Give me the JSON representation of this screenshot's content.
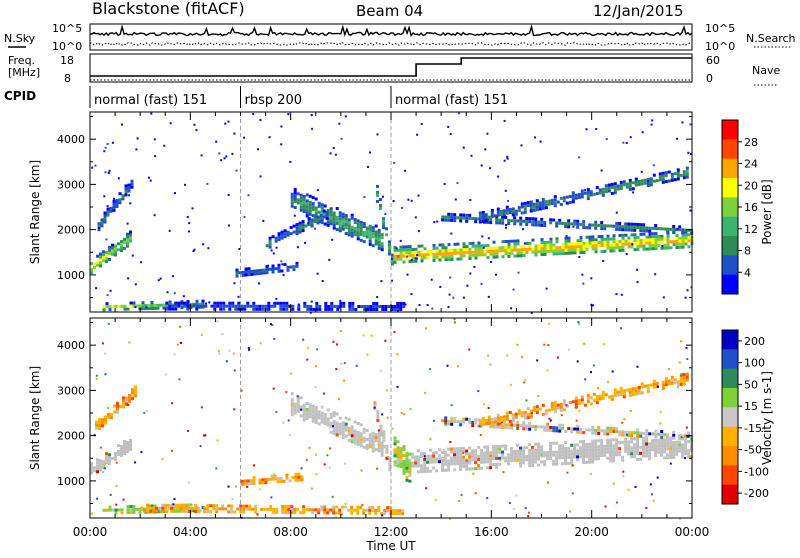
{
  "header": {
    "title": "Blackstone (fitACF)",
    "beam": "Beam 04",
    "date": "12/Jan/2015"
  },
  "noise_panel": {
    "left_label": "N.Sky",
    "right_label": "N.Search",
    "left_ticks": [
      "10^5",
      "10^0"
    ],
    "right_ticks": [
      "10^5",
      "10^0"
    ]
  },
  "freq_panel": {
    "left_label_1": "Freq.",
    "left_label_2": "[MHz]",
    "right_label": "Nave",
    "left_ticks": [
      "18",
      "8"
    ],
    "right_ticks": [
      "60",
      "0"
    ]
  },
  "cpid": {
    "label": "CPID",
    "segments": [
      {
        "label": "normal (fast) 151",
        "start_hour": 0
      },
      {
        "label": "rbsp 200",
        "start_hour": 6
      },
      {
        "label": "normal (fast) 151",
        "start_hour": 12
      }
    ]
  },
  "colors": {
    "power_scale": [
      "#0000ff",
      "#2050c8",
      "#2e8b57",
      "#3cb371",
      "#7fd13b",
      "#ffff00",
      "#ffa500",
      "#ff4500",
      "#ff0000"
    ],
    "velocity_scale": [
      "#e00000",
      "#ff4500",
      "#ff8c00",
      "#ffb000",
      "#c8c8c8",
      "#7fd13b",
      "#2e8b57",
      "#2050c8",
      "#0000c0"
    ],
    "ground_scatter": "#c0c0c0"
  },
  "chart_data": [
    {
      "type": "heatmap",
      "name": "power",
      "ylabel": "Slant Range [km]",
      "y_ticks": [
        1000,
        2000,
        3000,
        4000
      ],
      "ylim": [
        180,
        4600
      ],
      "xlim": [
        0,
        24
      ],
      "colorbar": {
        "label": "Power [dB]",
        "ticks": [
          "4",
          "8",
          "12",
          "16",
          "20",
          "24",
          "28"
        ],
        "range": [
          0,
          32
        ]
      },
      "bands": [
        {
          "start": 0.0,
          "end": 1.6,
          "center": [
            1200,
            1850
          ],
          "width": 300,
          "level": [
            22,
            14
          ]
        },
        {
          "start": 0.3,
          "end": 1.7,
          "center": [
            2100,
            3100
          ],
          "width": 260,
          "level": [
            9,
            7
          ]
        },
        {
          "start": 0.5,
          "end": 4.5,
          "center": [
            320,
            380
          ],
          "width": 150,
          "level": [
            20,
            12
          ]
        },
        {
          "start": 3.0,
          "end": 12.5,
          "center": [
            330,
            320
          ],
          "width": 160,
          "level": [
            6,
            5
          ]
        },
        {
          "start": 5.8,
          "end": 8.2,
          "center": [
            1050,
            1200
          ],
          "width": 180,
          "level": [
            8,
            7
          ]
        },
        {
          "start": 8.0,
          "end": 11.6,
          "center": [
            2700,
            1800
          ],
          "width": 500,
          "level": [
            10,
            14
          ]
        },
        {
          "start": 7.0,
          "end": 9.5,
          "center": [
            1700,
            2400
          ],
          "width": 220,
          "level": [
            8,
            9
          ]
        },
        {
          "start": 11.4,
          "end": 12.1,
          "center": [
            2800,
            1100
          ],
          "width": 380,
          "level": [
            12,
            14
          ]
        },
        {
          "start": 12.1,
          "end": 24.0,
          "center": [
            1450,
            1800
          ],
          "width": 380,
          "level": [
            24,
            22
          ]
        },
        {
          "start": 14.0,
          "end": 24.0,
          "center": [
            2300,
            2000
          ],
          "width": 160,
          "level": [
            8,
            10
          ]
        },
        {
          "start": 15.5,
          "end": 23.8,
          "center": [
            2300,
            3300
          ],
          "width": 200,
          "level": [
            8,
            12
          ]
        }
      ]
    },
    {
      "type": "heatmap",
      "name": "velocity",
      "xlabel": "Time UT",
      "ylabel": "Slant Range [km]",
      "x_ticks": [
        "00:00",
        "04:00",
        "08:00",
        "12:00",
        "16:00",
        "20:00",
        "00:00"
      ],
      "y_ticks": [
        1000,
        2000,
        3000,
        4000
      ],
      "ylim": [
        180,
        4600
      ],
      "xlim": [
        0,
        24
      ],
      "colorbar": {
        "label": "Velocity [m s-1]",
        "ticks": [
          "200",
          "100",
          "50",
          "15",
          "-15",
          "-50",
          "-100",
          "-200"
        ],
        "range": [
          -250,
          250
        ]
      },
      "bands": [
        {
          "start": 0.0,
          "end": 1.6,
          "center": [
            1250,
            1850
          ],
          "width": 320,
          "kind": "gs"
        },
        {
          "start": 0.2,
          "end": 1.8,
          "center": [
            2200,
            3000
          ],
          "width": 260,
          "kind": "orange"
        },
        {
          "start": 0.5,
          "end": 4.5,
          "center": [
            360,
            420
          ],
          "width": 180,
          "kind": "green"
        },
        {
          "start": 2.0,
          "end": 12.5,
          "center": [
            420,
            360
          ],
          "width": 160,
          "kind": "orange"
        },
        {
          "start": 6.0,
          "end": 8.5,
          "center": [
            1000,
            1100
          ],
          "width": 180,
          "kind": "orange"
        },
        {
          "start": 8.0,
          "end": 11.6,
          "center": [
            2700,
            1800
          ],
          "width": 520,
          "kind": "gs"
        },
        {
          "start": 11.3,
          "end": 12.0,
          "center": [
            2700,
            1200
          ],
          "width": 380,
          "kind": "gs"
        },
        {
          "start": 12.1,
          "end": 12.8,
          "center": [
            1700,
            1200
          ],
          "width": 700,
          "kind": "green"
        },
        {
          "start": 12.8,
          "end": 24.0,
          "center": [
            1450,
            1800
          ],
          "width": 480,
          "kind": "gs"
        },
        {
          "start": 14.0,
          "end": 24.0,
          "center": [
            2350,
            2000
          ],
          "width": 160,
          "kind": "mixed"
        },
        {
          "start": 15.5,
          "end": 23.8,
          "center": [
            2300,
            3300
          ],
          "width": 200,
          "kind": "orange"
        }
      ]
    }
  ]
}
